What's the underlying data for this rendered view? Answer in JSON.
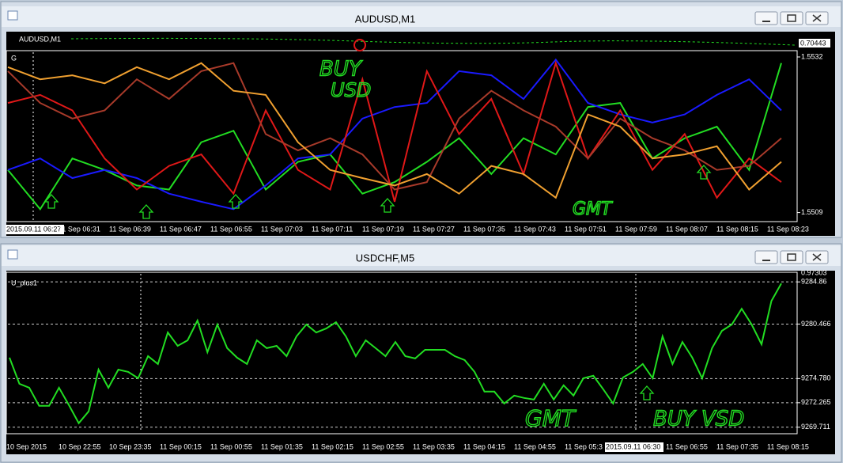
{
  "windows": [
    {
      "title": "AUDUSD,M1",
      "indicator_label": "AUDUSD,M1",
      "indicator_value": "0.70443",
      "chart_label": "G",
      "chart": {
        "type": "line",
        "ylim": [
          1.55079,
          1.55327
        ],
        "yticks": [
          1.5532,
          1.5509
        ],
        "series": [
          {
            "color": "#22dd22",
            "values": [
              1.55153,
              1.55095,
              1.5517,
              1.55153,
              1.5513,
              1.55124,
              1.55194,
              1.55211,
              1.55124,
              1.55165,
              1.55176,
              1.55118,
              1.55135,
              1.55165,
              1.552,
              1.55147,
              1.552,
              1.55176,
              1.55246,
              1.55252,
              1.5517,
              1.552,
              1.55217,
              1.55153,
              1.55311
            ]
          },
          {
            "color": "#1a1aff",
            "values": [
              1.55153,
              1.5517,
              1.55141,
              1.55153,
              1.55141,
              1.55118,
              1.55106,
              1.55095,
              1.5513,
              1.5517,
              1.55176,
              1.55229,
              1.55246,
              1.55252,
              1.55299,
              1.55293,
              1.55258,
              1.55316,
              1.55252,
              1.55235,
              1.55223,
              1.55235,
              1.55264,
              1.55287,
              1.55241
            ]
          },
          {
            "color": "#e01818",
            "values": [
              1.55252,
              1.55264,
              1.55241,
              1.5517,
              1.55124,
              1.55159,
              1.55176,
              1.55118,
              1.55241,
              1.55153,
              1.55124,
              1.55287,
              1.55106,
              1.55299,
              1.55206,
              1.55258,
              1.55147,
              1.55311,
              1.5517,
              1.55241,
              1.55153,
              1.55206,
              1.55112,
              1.5517,
              1.55135
            ]
          },
          {
            "color": "#a83a2a",
            "values": [
              1.55299,
              1.55252,
              1.55229,
              1.55241,
              1.55287,
              1.55258,
              1.55299,
              1.55311,
              1.55206,
              1.55182,
              1.552,
              1.55176,
              1.55124,
              1.55135,
              1.55229,
              1.5527,
              1.55241,
              1.55217,
              1.5517,
              1.55229,
              1.552,
              1.55182,
              1.55153,
              1.55159,
              1.552
            ]
          },
          {
            "color": "#f0a030",
            "values": [
              1.55305,
              1.55287,
              1.55293,
              1.55281,
              1.55305,
              1.55287,
              1.55311,
              1.5527,
              1.55264,
              1.55194,
              1.55153,
              1.55141,
              1.5513,
              1.55147,
              1.55118,
              1.55159,
              1.55147,
              1.55112,
              1.55235,
              1.55217,
              1.5517,
              1.55176,
              1.55188,
              1.55124,
              1.55165
            ]
          }
        ]
      },
      "time_labels": [
        "2015.09.11 06:27",
        "11 Sep 06:31",
        "11 Sep 06:39",
        "11 Sep 06:47",
        "11 Sep 06:55",
        "11 Sep 07:03",
        "11 Sep 07:11",
        "11 Sep 07:19",
        "11 Sep 07:27",
        "11 Sep 07:35",
        "11 Sep 07:43",
        "11 Sep 07:51",
        "11 Sep 07:59",
        "11 Sep 08:07",
        "11 Sep 08:15",
        "11 Sep 08:23"
      ],
      "annotations": [
        "BUY",
        "USD",
        "GMT"
      ]
    },
    {
      "title": "USDCHF,M5",
      "indicator_value": "0.97303",
      "chart_label": "U_plus1",
      "chart": {
        "type": "line",
        "ylim": [
          9269.2,
          9285.7
        ],
        "yticks": [
          9284.86,
          9280.466,
          {
            "value": 9274.78,
            "label": "9274.780"
          },
          9272.265,
          9269.711
        ],
        "series": [
          {
            "color": "#22dd22",
            "values": [
              9276.96,
              9274.24,
              9273.83,
              9271.94,
              9271.94,
              9273.83,
              9272.02,
              9270.13,
              9271.36,
              9275.72,
              9273.83,
              9275.72,
              9275.48,
              9274.82,
              9277.12,
              9276.3,
              9279.59,
              9278.19,
              9278.77,
              9280.83,
              9277.53,
              9280.42,
              9277.95,
              9276.96,
              9276.3,
              9278.77,
              9277.95,
              9278.19,
              9277.12,
              9279.18,
              9280.42,
              9279.59,
              9280.0,
              9280.66,
              9279.18,
              9277.12,
              9278.77,
              9277.95,
              9277.12,
              9278.6,
              9277.12,
              9276.88,
              9277.78,
              9277.78,
              9277.78,
              9277.12,
              9276.71,
              9275.48,
              9273.42,
              9273.42,
              9272.19,
              9273.01,
              9272.76,
              9272.6,
              9274.24,
              9272.6,
              9274.08,
              9273.01,
              9274.82,
              9275.07,
              9273.67,
              9272.19,
              9274.9,
              9275.48,
              9276.3,
              9274.82,
              9279.18,
              9276.3,
              9278.6,
              9276.96,
              9274.82,
              9277.95,
              9279.76,
              9280.42,
              9282.06,
              9280.42,
              9278.36,
              9282.88,
              9284.7
            ]
          }
        ]
      },
      "time_labels": [
        "10 Sep 2015",
        "10 Sep 22:55",
        "10 Sep 23:35",
        "11 Sep 00:15",
        "11 Sep 00:55",
        "11 Sep 01:35",
        "11 Sep 02:15",
        "11 Sep 02:55",
        "11 Sep 03:35",
        "11 Sep 04:15",
        "11 Sep 04:55",
        "11 Sep 05:3",
        "2015.09.11 06:30",
        "11 Sep 06:55",
        "11 Sep 07:35",
        "11 Sep 08:15"
      ],
      "annotations": [
        "GMT",
        "BUY VSD"
      ]
    }
  ]
}
